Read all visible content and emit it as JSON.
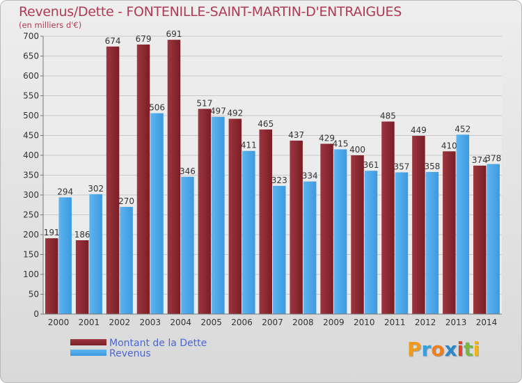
{
  "header": {
    "title": "Revenus/Dette - FONTENILLE-SAINT-MARTIN-D'ENTRAIGUES",
    "subtitle": "(en milliers d'€)"
  },
  "logo": {
    "text": "Proxiti",
    "letters": [
      "P",
      "r",
      "o",
      "x",
      "i",
      "t",
      "i"
    ],
    "colors": [
      "#f29a1a",
      "#3aa0dc",
      "#f07e1a",
      "#2e86c8",
      "#e0452b",
      "#7ab83a",
      "#f0b41c"
    ]
  },
  "colors": {
    "dette": "#7a1e25",
    "revenus": "#3d9ae0",
    "title": "#b03a55",
    "axis_text": "#333333"
  },
  "chart_data": {
    "type": "bar",
    "title": "Revenus/Dette - FONTENILLE-SAINT-MARTIN-D'ENTRAIGUES",
    "subtitle": "(en milliers d'€)",
    "categories": [
      "2000",
      "2001",
      "2002",
      "2003",
      "2004",
      "2005",
      "2006",
      "2007",
      "2008",
      "2009",
      "2010",
      "2011",
      "2012",
      "2013",
      "2014"
    ],
    "series": [
      {
        "name": "Montant de la Dette",
        "values": [
          191,
          186,
          674,
          679,
          691,
          517,
          492,
          465,
          437,
          429,
          400,
          485,
          449,
          410,
          374
        ]
      },
      {
        "name": "Revenus",
        "values": [
          294,
          302,
          270,
          506,
          346,
          497,
          411,
          323,
          334,
          415,
          361,
          357,
          358,
          452,
          378
        ]
      }
    ],
    "ylim": [
      0,
      700
    ],
    "yticks": [
      0,
      50,
      100,
      150,
      200,
      250,
      300,
      350,
      400,
      450,
      500,
      550,
      600,
      650,
      700
    ],
    "grid": true,
    "legend_position": "bottom-left"
  }
}
